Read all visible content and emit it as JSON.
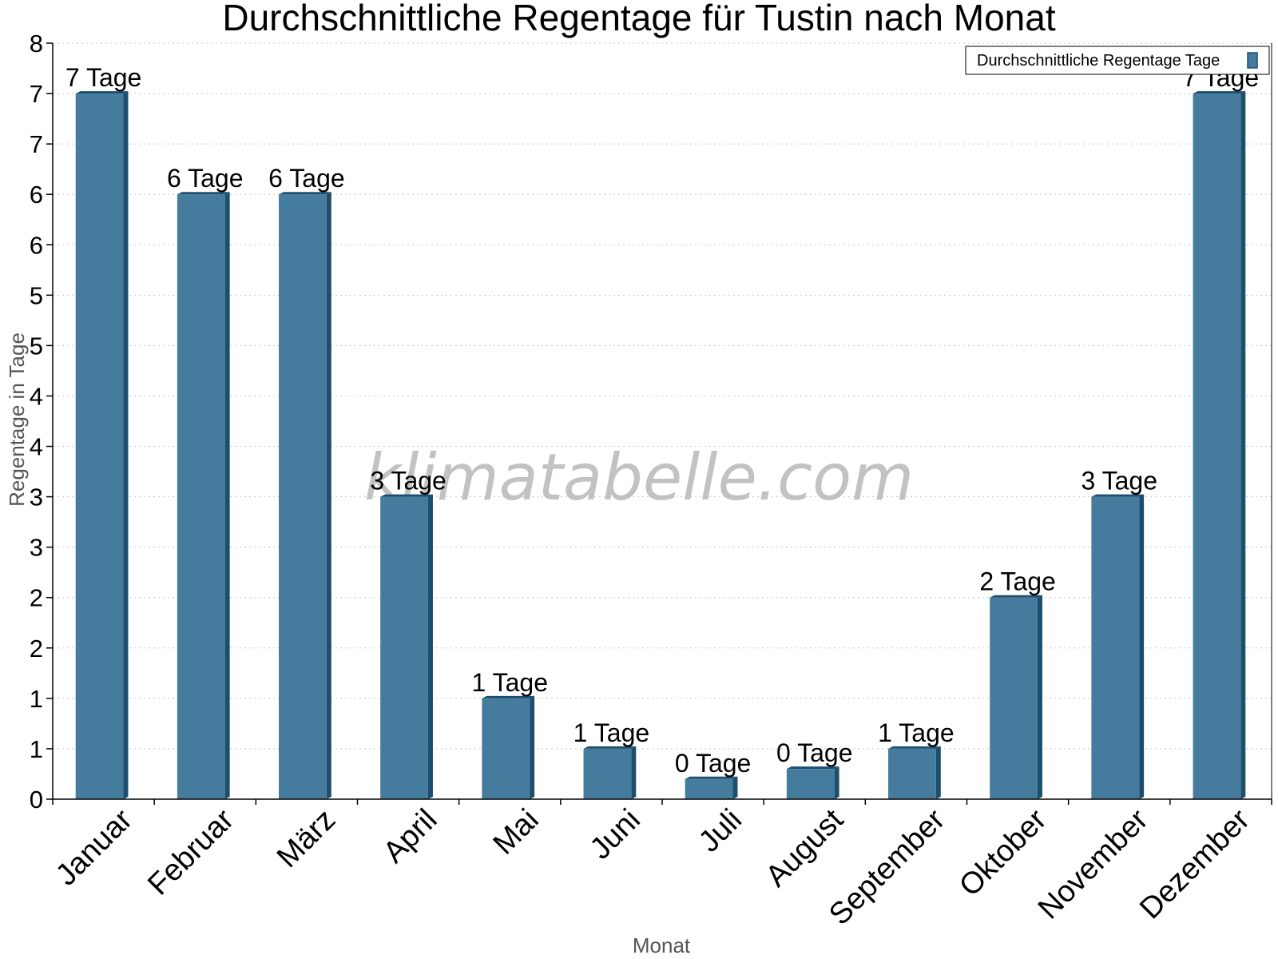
{
  "chart_data": {
    "type": "bar",
    "title": "Durchschnittliche Regentage für Tustin nach Monat",
    "xlabel": "Monat",
    "ylabel": "Regentage in Tage",
    "categories": [
      "Januar",
      "Februar",
      "März",
      "April",
      "Mai",
      "Juni",
      "Juli",
      "August",
      "September",
      "Oktober",
      "November",
      "Dezember"
    ],
    "series": [
      {
        "name": "Durchschnittliche Regentage Tage",
        "values": [
          7.0,
          6.0,
          6.0,
          3.0,
          1.0,
          0.5,
          0.2,
          0.3,
          0.5,
          2.0,
          3.0,
          7.0
        ],
        "labels": [
          "7 Tage",
          "6 Tage",
          "6 Tage",
          "3 Tage",
          "1 Tage",
          "1 Tage",
          "0 Tage",
          "0 Tage",
          "1 Tage",
          "2 Tage",
          "3 Tage",
          "7 Tage"
        ]
      }
    ],
    "ylim": [
      0,
      7.5
    ],
    "yticks": [
      0,
      0.5,
      1,
      1.5,
      2,
      2.5,
      3,
      3.5,
      4,
      4.5,
      5,
      5.5,
      6,
      6.5,
      7,
      7.5
    ],
    "ytick_labels": [
      "0",
      "1",
      "1",
      "2",
      "2",
      "3",
      "3",
      "4",
      "4",
      "5",
      "5",
      "6",
      "6",
      "7",
      "7",
      "8"
    ],
    "grid": true,
    "legend_position": "top-right",
    "bar_color": "#457b9d",
    "bar_side_color": "#1d4e6e",
    "watermark": "klimatabelle.com"
  }
}
